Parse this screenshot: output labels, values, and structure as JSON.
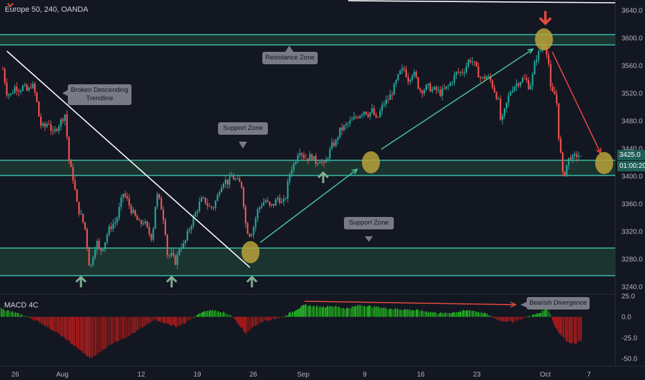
{
  "header": {
    "title": "Europe 50, 240, OANDA"
  },
  "macd": {
    "label": "MACD 4C"
  },
  "price_axis": {
    "ticks": [
      "3640.0",
      "3600.0",
      "3560.0",
      "3520.0",
      "3480.0",
      "3440.0",
      "3400.0",
      "3360.0",
      "3320.0",
      "3280.0",
      "3240.0"
    ],
    "last_price": "3425.0",
    "countdown": "01:00:20"
  },
  "macd_axis": {
    "ticks": [
      "25.0",
      "0.0",
      "-25.0",
      "-50.0"
    ]
  },
  "time_axis": {
    "ticks": [
      "26",
      "Aug",
      "12",
      "19",
      "26",
      "Sep",
      "9",
      "16",
      "23",
      "Oct",
      "7"
    ]
  },
  "annotations": {
    "resistance_zone": "Resistance Zone",
    "broken_trendline": "Broken Descending Trendline",
    "support_zone_upper": "Support Zone",
    "support_zone_lower": "Support Zone",
    "bearish_divergence": "Bearish Divergence"
  },
  "colors": {
    "background": "#131722",
    "up": "#26a69a",
    "down": "#ef5350",
    "zone_line": "#3fd9c2",
    "zone_fill": "#1f3a33",
    "highlight_circle": "#b8a23a",
    "arrow_green": "#7fb08f",
    "arrow_red": "#e84a3c",
    "macd_green": "#26c226",
    "macd_red": "#b81c1c"
  },
  "chart_data": {
    "type": "candlestick",
    "symbol": "Europe 50",
    "timeframe": "240",
    "source": "OANDA",
    "y_range": [
      3230,
      3650
    ],
    "x_ticks": [
      "26",
      "Aug",
      "12",
      "19",
      "26",
      "Sep",
      "9",
      "16",
      "23",
      "Oct",
      "7"
    ],
    "close_path": [
      [
        0,
        3555
      ],
      [
        4,
        3555
      ],
      [
        10,
        3520
      ],
      [
        16,
        3518
      ],
      [
        22,
        3530
      ],
      [
        28,
        3525
      ],
      [
        34,
        3530
      ],
      [
        40,
        3522
      ],
      [
        46,
        3535
      ],
      [
        52,
        3515
      ],
      [
        58,
        3475
      ],
      [
        64,
        3470
      ],
      [
        70,
        3480
      ],
      [
        76,
        3460
      ],
      [
        82,
        3470
      ],
      [
        88,
        3480
      ],
      [
        94,
        3490
      ],
      [
        100,
        3420
      ],
      [
        106,
        3395
      ],
      [
        112,
        3355
      ],
      [
        118,
        3340
      ],
      [
        124,
        3320
      ],
      [
        128,
        3275
      ],
      [
        132,
        3270
      ],
      [
        136,
        3295
      ],
      [
        140,
        3305
      ],
      [
        144,
        3290
      ],
      [
        150,
        3300
      ],
      [
        156,
        3320
      ],
      [
        162,
        3330
      ],
      [
        168,
        3335
      ],
      [
        174,
        3360
      ],
      [
        178,
        3375
      ],
      [
        184,
        3365
      ],
      [
        190,
        3350
      ],
      [
        196,
        3340
      ],
      [
        202,
        3330
      ],
      [
        208,
        3335
      ],
      [
        214,
        3320
      ],
      [
        220,
        3310
      ],
      [
        226,
        3375
      ],
      [
        232,
        3360
      ],
      [
        238,
        3330
      ],
      [
        242,
        3285
      ],
      [
        248,
        3285
      ],
      [
        254,
        3275
      ],
      [
        260,
        3300
      ],
      [
        266,
        3300
      ],
      [
        272,
        3320
      ],
      [
        278,
        3335
      ],
      [
        284,
        3350
      ],
      [
        290,
        3365
      ],
      [
        296,
        3365
      ],
      [
        302,
        3355
      ],
      [
        308,
        3355
      ],
      [
        314,
        3370
      ],
      [
        318,
        3385
      ],
      [
        324,
        3395
      ],
      [
        330,
        3390
      ],
      [
        334,
        3400
      ],
      [
        340,
        3395
      ],
      [
        346,
        3390
      ],
      [
        350,
        3385
      ],
      [
        354,
        3335
      ],
      [
        358,
        3320
      ],
      [
        362,
        3315
      ],
      [
        366,
        3325
      ],
      [
        372,
        3350
      ],
      [
        378,
        3360
      ],
      [
        384,
        3365
      ],
      [
        390,
        3355
      ],
      [
        396,
        3360
      ],
      [
        402,
        3370
      ],
      [
        408,
        3360
      ],
      [
        412,
        3365
      ],
      [
        416,
        3390
      ],
      [
        420,
        3410
      ],
      [
        426,
        3420
      ],
      [
        432,
        3440
      ],
      [
        438,
        3430
      ],
      [
        444,
        3425
      ],
      [
        450,
        3430
      ],
      [
        456,
        3420
      ],
      [
        462,
        3425
      ],
      [
        468,
        3415
      ],
      [
        474,
        3430
      ],
      [
        480,
        3445
      ],
      [
        486,
        3450
      ],
      [
        490,
        3465
      ],
      [
        496,
        3470
      ],
      [
        502,
        3475
      ],
      [
        508,
        3480
      ],
      [
        514,
        3485
      ],
      [
        520,
        3490
      ],
      [
        526,
        3495
      ],
      [
        532,
        3490
      ],
      [
        538,
        3495
      ],
      [
        544,
        3480
      ],
      [
        548,
        3490
      ],
      [
        554,
        3505
      ],
      [
        560,
        3510
      ],
      [
        566,
        3520
      ],
      [
        572,
        3535
      ],
      [
        578,
        3550
      ],
      [
        584,
        3555
      ],
      [
        590,
        3540
      ],
      [
        596,
        3550
      ],
      [
        600,
        3545
      ],
      [
        606,
        3525
      ],
      [
        612,
        3525
      ],
      [
        618,
        3530
      ],
      [
        624,
        3525
      ],
      [
        630,
        3525
      ],
      [
        636,
        3520
      ],
      [
        642,
        3525
      ],
      [
        648,
        3530
      ],
      [
        654,
        3540
      ],
      [
        660,
        3550
      ],
      [
        666,
        3550
      ],
      [
        672,
        3555
      ],
      [
        678,
        3570
      ],
      [
        684,
        3565
      ],
      [
        690,
        3550
      ],
      [
        696,
        3540
      ],
      [
        702,
        3545
      ],
      [
        708,
        3540
      ],
      [
        712,
        3530
      ],
      [
        716,
        3520
      ],
      [
        720,
        3510
      ],
      [
        724,
        3475
      ],
      [
        728,
        3490
      ],
      [
        732,
        3505
      ],
      [
        736,
        3520
      ],
      [
        742,
        3530
      ],
      [
        748,
        3535
      ],
      [
        754,
        3540
      ],
      [
        760,
        3540
      ],
      [
        764,
        3530
      ],
      [
        768,
        3535
      ],
      [
        772,
        3560
      ],
      [
        776,
        3575
      ],
      [
        780,
        3580
      ],
      [
        784,
        3590
      ],
      [
        788,
        3590
      ],
      [
        790,
        3580
      ],
      [
        794,
        3555
      ],
      [
        796,
        3520
      ],
      [
        800,
        3520
      ],
      [
        804,
        3515
      ],
      [
        806,
        3470
      ],
      [
        810,
        3435
      ],
      [
        812,
        3400
      ],
      [
        816,
        3405
      ],
      [
        820,
        3420
      ],
      [
        824,
        3430
      ],
      [
        828,
        3425
      ],
      [
        832,
        3430
      ],
      [
        836,
        3430
      ],
      [
        840,
        3425
      ]
    ],
    "resistance_zone": [
      3590,
      3605
    ],
    "support_zone_upper": [
      3401,
      3423
    ],
    "support_zone_lower": [
      3256,
      3296
    ],
    "last_price": 3425.0,
    "macd_y_range": [
      -55,
      27
    ],
    "macd_x_ticks": [
      25.0,
      0.0,
      -25.0,
      -50.0
    ],
    "macd_envelope": [
      [
        0,
        10
      ],
      [
        20,
        5
      ],
      [
        40,
        0
      ],
      [
        60,
        -8
      ],
      [
        80,
        -18
      ],
      [
        100,
        -30
      ],
      [
        115,
        -40
      ],
      [
        130,
        -50
      ],
      [
        140,
        -45
      ],
      [
        150,
        -38
      ],
      [
        165,
        -30
      ],
      [
        180,
        -25
      ],
      [
        195,
        -18
      ],
      [
        210,
        -10
      ],
      [
        225,
        -3
      ],
      [
        240,
        -8
      ],
      [
        255,
        -12
      ],
      [
        270,
        -6
      ],
      [
        290,
        5
      ],
      [
        305,
        8
      ],
      [
        320,
        6
      ],
      [
        335,
        0
      ],
      [
        345,
        -10
      ],
      [
        355,
        -20
      ],
      [
        365,
        -12
      ],
      [
        380,
        -5
      ],
      [
        395,
        -2
      ],
      [
        410,
        0
      ],
      [
        415,
        3
      ],
      [
        430,
        10
      ],
      [
        440,
        14
      ],
      [
        460,
        12
      ],
      [
        480,
        13
      ],
      [
        500,
        10
      ],
      [
        520,
        14
      ],
      [
        540,
        12
      ],
      [
        560,
        10
      ],
      [
        580,
        9
      ],
      [
        600,
        8
      ],
      [
        620,
        6
      ],
      [
        640,
        4
      ],
      [
        660,
        6
      ],
      [
        680,
        8
      ],
      [
        700,
        4
      ],
      [
        710,
        0
      ],
      [
        720,
        -4
      ],
      [
        740,
        -6
      ],
      [
        750,
        -3
      ],
      [
        760,
        0
      ],
      [
        770,
        2
      ],
      [
        780,
        5
      ],
      [
        790,
        10
      ],
      [
        795,
        4
      ],
      [
        800,
        -10
      ],
      [
        810,
        -22
      ],
      [
        820,
        -30
      ],
      [
        830,
        -32
      ],
      [
        840,
        -28
      ]
    ]
  }
}
